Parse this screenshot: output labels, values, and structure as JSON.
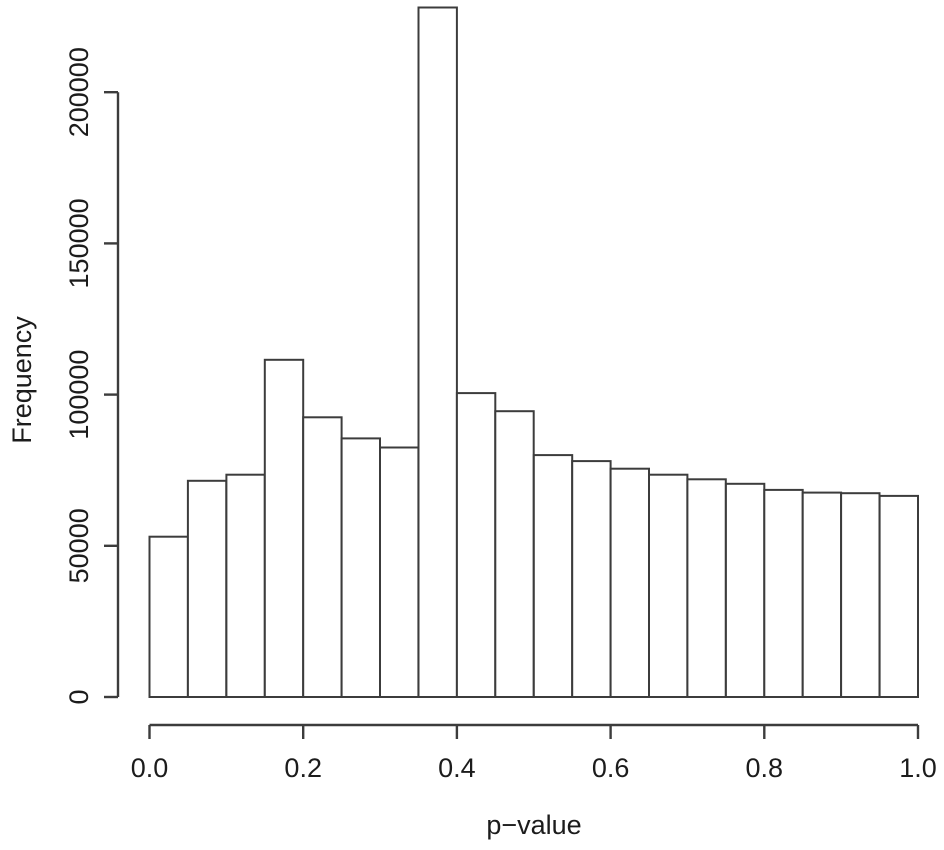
{
  "figure": {
    "background": "#ffffff",
    "line_color": "#3c3c3c",
    "text_color": "#1c1c1c"
  },
  "chart_data": {
    "type": "bar",
    "subtype": "histogram",
    "title": "",
    "xlabel": "p−value",
    "ylabel": "Frequency",
    "bar_fill": "#ffffff",
    "bar_stroke": "#3c3c3c",
    "grid": false,
    "legend": null,
    "xlim": [
      0.0,
      1.0
    ],
    "ylim": [
      0,
      228000
    ],
    "bin_start": 0.0,
    "bin_width": 0.05,
    "bin_edges": [
      0.0,
      0.05,
      0.1,
      0.15,
      0.2,
      0.25,
      0.3,
      0.35,
      0.4,
      0.45,
      0.5,
      0.55,
      0.6,
      0.65,
      0.7,
      0.75,
      0.8,
      0.85,
      0.9,
      0.95,
      1.0
    ],
    "values": [
      53000,
      71500,
      73500,
      111500,
      92500,
      85500,
      82500,
      228000,
      100500,
      94500,
      80000,
      78000,
      75500,
      73500,
      72000,
      70500,
      68500,
      67600,
      67400,
      66500
    ],
    "x_ticks": [
      {
        "value": 0.0,
        "label": "0.0"
      },
      {
        "value": 0.2,
        "label": "0.2"
      },
      {
        "value": 0.4,
        "label": "0.4"
      },
      {
        "value": 0.6,
        "label": "0.6"
      },
      {
        "value": 0.8,
        "label": "0.8"
      },
      {
        "value": 1.0,
        "label": "1.0"
      }
    ],
    "y_ticks": [
      {
        "value": 0,
        "label": "0"
      },
      {
        "value": 50000,
        "label": "50000"
      },
      {
        "value": 100000,
        "label": "100000"
      },
      {
        "value": 150000,
        "label": "150000"
      },
      {
        "value": 200000,
        "label": "200000"
      }
    ]
  }
}
